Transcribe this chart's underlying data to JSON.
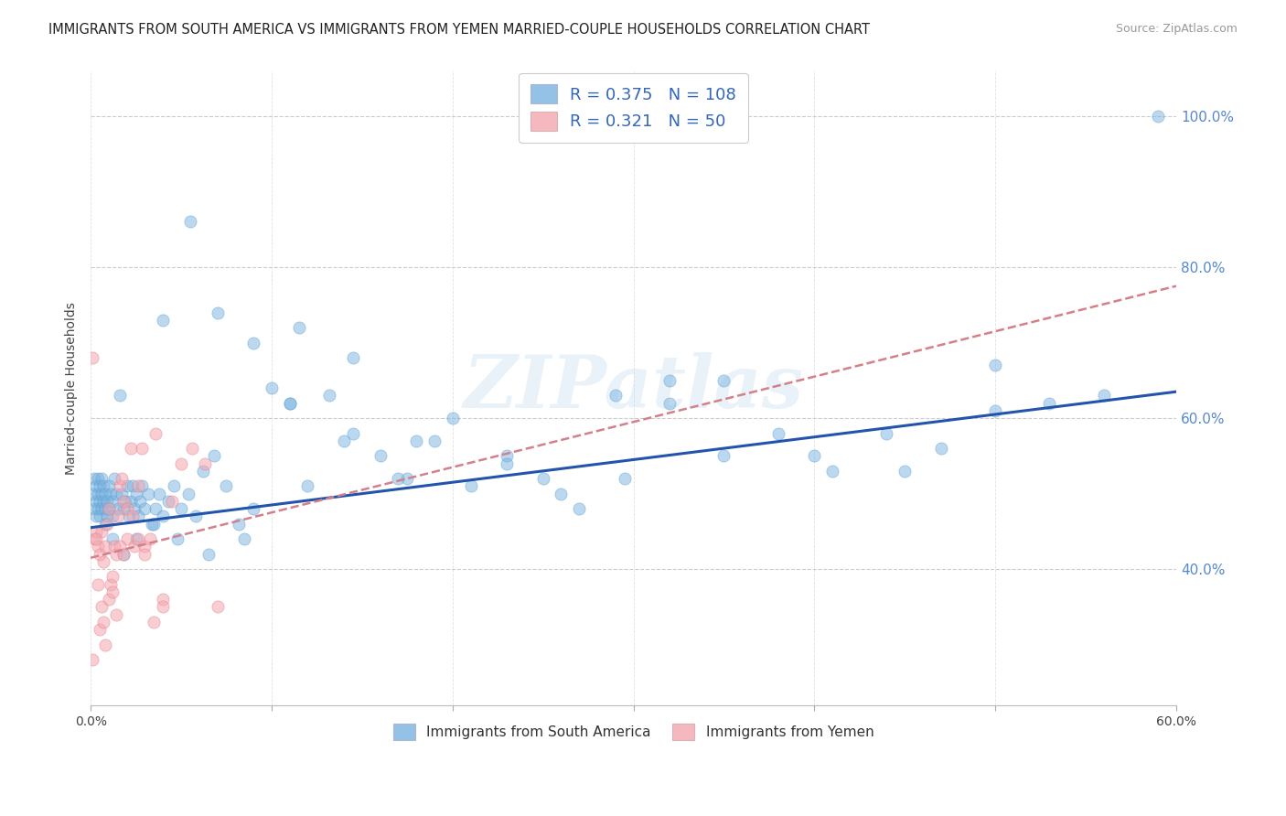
{
  "title": "IMMIGRANTS FROM SOUTH AMERICA VS IMMIGRANTS FROM YEMEN MARRIED-COUPLE HOUSEHOLDS CORRELATION CHART",
  "source": "Source: ZipAtlas.com",
  "ylabel": "Married-couple Households",
  "xlim": [
    0.0,
    0.6
  ],
  "ylim": [
    0.22,
    1.06
  ],
  "xticks": [
    0.0,
    0.1,
    0.2,
    0.3,
    0.4,
    0.5,
    0.6
  ],
  "xtick_labels": [
    "0.0%",
    "",
    "",
    "",
    "",
    "",
    "60.0%"
  ],
  "yticks_right": [
    0.4,
    0.6,
    0.8,
    1.0
  ],
  "ytick_labels_right": [
    "40.0%",
    "60.0%",
    "80.0%",
    "100.0%"
  ],
  "blue_color": "#7ab3e0",
  "blue_edge_color": "#5a9fd4",
  "pink_color": "#f4a7b0",
  "pink_edge_color": "#e8808e",
  "trend_blue_color": "#2255aa",
  "trend_pink_color": "#d4808a",
  "watermark": "ZIPatlas",
  "legend_r_blue": "0.375",
  "legend_n_blue": "108",
  "legend_r_pink": "0.321",
  "legend_n_pink": "50",
  "legend_label_blue": "Immigrants from South America",
  "legend_label_pink": "Immigrants from Yemen",
  "blue_x": [
    0.001,
    0.002,
    0.002,
    0.003,
    0.003,
    0.003,
    0.004,
    0.004,
    0.004,
    0.005,
    0.005,
    0.005,
    0.006,
    0.006,
    0.006,
    0.007,
    0.007,
    0.008,
    0.008,
    0.009,
    0.009,
    0.01,
    0.01,
    0.011,
    0.012,
    0.012,
    0.013,
    0.014,
    0.015,
    0.016,
    0.017,
    0.018,
    0.019,
    0.02,
    0.021,
    0.022,
    0.023,
    0.024,
    0.025,
    0.026,
    0.027,
    0.028,
    0.03,
    0.032,
    0.034,
    0.036,
    0.038,
    0.04,
    0.043,
    0.046,
    0.05,
    0.054,
    0.058,
    0.062,
    0.068,
    0.075,
    0.082,
    0.09,
    0.1,
    0.11,
    0.12,
    0.132,
    0.145,
    0.16,
    0.175,
    0.19,
    0.21,
    0.23,
    0.25,
    0.27,
    0.295,
    0.32,
    0.35,
    0.38,
    0.41,
    0.44,
    0.47,
    0.5,
    0.53,
    0.56,
    0.008,
    0.012,
    0.018,
    0.025,
    0.035,
    0.048,
    0.065,
    0.085,
    0.11,
    0.14,
    0.17,
    0.2,
    0.23,
    0.26,
    0.29,
    0.32,
    0.35,
    0.4,
    0.45,
    0.5,
    0.04,
    0.055,
    0.07,
    0.09,
    0.115,
    0.145,
    0.18,
    0.59
  ],
  "blue_y": [
    0.5,
    0.48,
    0.52,
    0.49,
    0.47,
    0.51,
    0.5,
    0.48,
    0.52,
    0.49,
    0.51,
    0.47,
    0.5,
    0.48,
    0.52,
    0.49,
    0.51,
    0.48,
    0.5,
    0.47,
    0.49,
    0.51,
    0.48,
    0.5,
    0.47,
    0.49,
    0.52,
    0.5,
    0.48,
    0.63,
    0.5,
    0.48,
    0.49,
    0.51,
    0.47,
    0.49,
    0.51,
    0.48,
    0.5,
    0.47,
    0.49,
    0.51,
    0.48,
    0.5,
    0.46,
    0.48,
    0.5,
    0.47,
    0.49,
    0.51,
    0.48,
    0.5,
    0.47,
    0.53,
    0.55,
    0.51,
    0.46,
    0.48,
    0.64,
    0.62,
    0.51,
    0.63,
    0.58,
    0.55,
    0.52,
    0.57,
    0.51,
    0.55,
    0.52,
    0.48,
    0.52,
    0.65,
    0.55,
    0.58,
    0.53,
    0.58,
    0.56,
    0.67,
    0.62,
    0.63,
    0.46,
    0.44,
    0.42,
    0.44,
    0.46,
    0.44,
    0.42,
    0.44,
    0.62,
    0.57,
    0.52,
    0.6,
    0.54,
    0.5,
    0.63,
    0.62,
    0.65,
    0.55,
    0.53,
    0.61,
    0.73,
    0.86,
    0.74,
    0.7,
    0.72,
    0.68,
    0.57,
    1.0
  ],
  "pink_x": [
    0.001,
    0.002,
    0.003,
    0.004,
    0.005,
    0.006,
    0.007,
    0.008,
    0.009,
    0.01,
    0.011,
    0.012,
    0.013,
    0.014,
    0.015,
    0.016,
    0.017,
    0.018,
    0.02,
    0.022,
    0.024,
    0.026,
    0.028,
    0.03,
    0.033,
    0.036,
    0.04,
    0.045,
    0.05,
    0.056,
    0.063,
    0.07,
    0.003,
    0.004,
    0.005,
    0.006,
    0.007,
    0.008,
    0.01,
    0.012,
    0.014,
    0.016,
    0.018,
    0.02,
    0.023,
    0.026,
    0.03,
    0.035,
    0.04,
    0.001
  ],
  "pink_y": [
    0.68,
    0.44,
    0.45,
    0.43,
    0.42,
    0.45,
    0.41,
    0.43,
    0.46,
    0.48,
    0.38,
    0.39,
    0.43,
    0.42,
    0.47,
    0.51,
    0.52,
    0.49,
    0.44,
    0.56,
    0.43,
    0.51,
    0.56,
    0.43,
    0.44,
    0.58,
    0.36,
    0.49,
    0.54,
    0.56,
    0.54,
    0.35,
    0.44,
    0.38,
    0.32,
    0.35,
    0.33,
    0.3,
    0.36,
    0.37,
    0.34,
    0.43,
    0.42,
    0.48,
    0.47,
    0.44,
    0.42,
    0.33,
    0.35,
    0.28
  ],
  "trend_blue_x0": 0.0,
  "trend_blue_x1": 0.6,
  "trend_blue_y0": 0.455,
  "trend_blue_y1": 0.635,
  "trend_pink_x0": 0.0,
  "trend_pink_x1": 0.6,
  "trend_pink_y0": 0.415,
  "trend_pink_y1": 0.775
}
